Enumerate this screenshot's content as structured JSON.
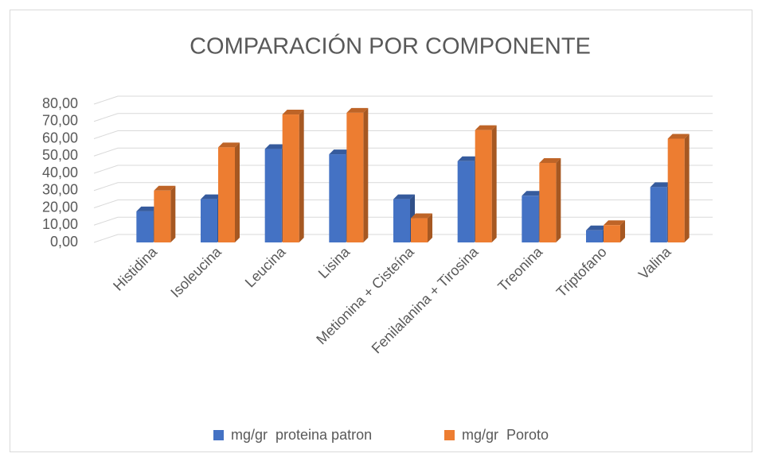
{
  "chart_data": {
    "type": "bar3d",
    "title": "COMPARACIÓN POR COMPONENTE",
    "categories": [
      "Histidina",
      "Isoleucina",
      "Leucina",
      "Lisina",
      "Metionina + Cisteína",
      "Fenilalanina + Tirosina",
      "Treonina",
      "Triptofano",
      "Valina"
    ],
    "series": [
      {
        "name": "mg/gr  proteina patron",
        "color": "#4472c4",
        "values": [
          18,
          25,
          54,
          51,
          25,
          47,
          27,
          7,
          32
        ]
      },
      {
        "name": "mg/gr  Poroto",
        "color": "#ed7d31",
        "values": [
          30,
          55,
          74,
          75,
          14,
          65,
          46,
          10,
          60
        ]
      }
    ],
    "ylim": [
      0,
      80
    ],
    "yticks": [
      {
        "value": 0,
        "label": "0,00"
      },
      {
        "value": 10,
        "label": "10,00"
      },
      {
        "value": 20,
        "label": "20,00"
      },
      {
        "value": 30,
        "label": "30,00"
      },
      {
        "value": 40,
        "label": "40,00"
      },
      {
        "value": 50,
        "label": "50,00"
      },
      {
        "value": 60,
        "label": "60,00"
      },
      {
        "value": 70,
        "label": "70,00"
      },
      {
        "value": 80,
        "label": "80,00"
      }
    ],
    "grid": true,
    "legend": "bottom"
  }
}
